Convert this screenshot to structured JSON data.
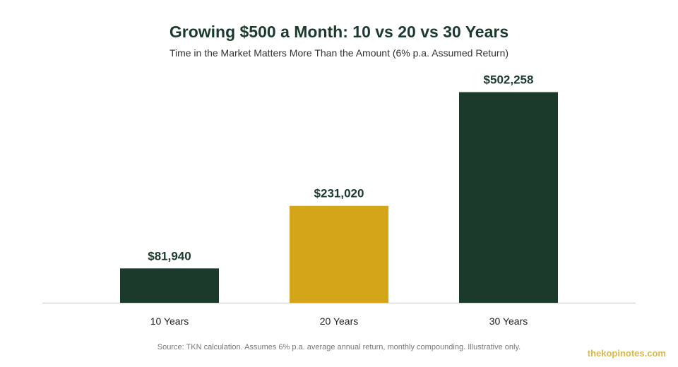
{
  "chart_data": {
    "type": "bar",
    "title": "Growing $500 a Month: 10 vs 20 vs 30 Years",
    "subtitle": "Time in the Market Matters More Than the Amount (6% p.a. Assumed Return)",
    "categories": [
      "10 Years",
      "20 Years",
      "30 Years"
    ],
    "values": [
      81940,
      231020,
      502258
    ],
    "value_labels": [
      "$81,940",
      "$231,020",
      "$502,258"
    ],
    "bar_colors": [
      "#1b3a2c",
      "#d4a419",
      "#1b3a2c"
    ],
    "ylim": [
      0,
      520000
    ],
    "grid": false,
    "legend": "none"
  },
  "footer": {
    "source": "Source: TKN calculation. Assumes 6% p.a. average annual return, monthly compounding. Illustrative only.",
    "brand": "thekopinotes.com"
  }
}
